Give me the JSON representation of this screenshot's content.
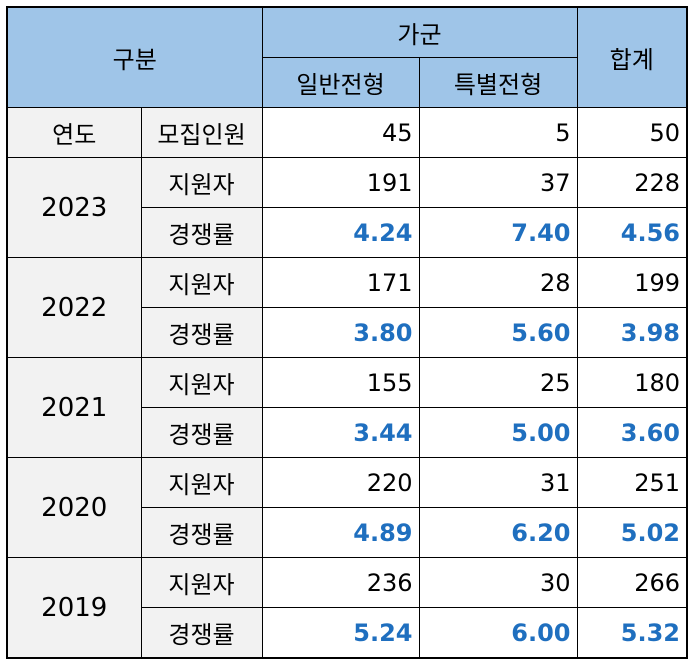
{
  "header": {
    "category": "구분",
    "group": "가군",
    "general": "일반전형",
    "special": "특별전형",
    "total": "합계"
  },
  "quota": {
    "label_year": "연도",
    "label_quota": "모집인원",
    "general": "45",
    "special": "5",
    "total": "50"
  },
  "row_labels": {
    "applicants": "지원자",
    "rate": "경쟁률"
  },
  "years": [
    {
      "year": "2023",
      "applicants": {
        "general": "191",
        "special": "37",
        "total": "228"
      },
      "rate": {
        "general": "4.24",
        "special": "7.40",
        "total": "4.56"
      }
    },
    {
      "year": "2022",
      "applicants": {
        "general": "171",
        "special": "28",
        "total": "199"
      },
      "rate": {
        "general": "3.80",
        "special": "5.60",
        "total": "3.98"
      }
    },
    {
      "year": "2021",
      "applicants": {
        "general": "155",
        "special": "25",
        "total": "180"
      },
      "rate": {
        "general": "3.44",
        "special": "5.00",
        "total": "3.60"
      }
    },
    {
      "year": "2020",
      "applicants": {
        "general": "220",
        "special": "31",
        "total": "251"
      },
      "rate": {
        "general": "4.89",
        "special": "6.20",
        "total": "5.02"
      }
    },
    {
      "year": "2019",
      "applicants": {
        "general": "236",
        "special": "30",
        "total": "266"
      },
      "rate": {
        "general": "5.24",
        "special": "6.00",
        "total": "5.32"
      }
    }
  ],
  "colors": {
    "header_bg": "#9fc5e8",
    "label_bg": "#f2f2f2",
    "rate_text": "#1f6fbf"
  }
}
